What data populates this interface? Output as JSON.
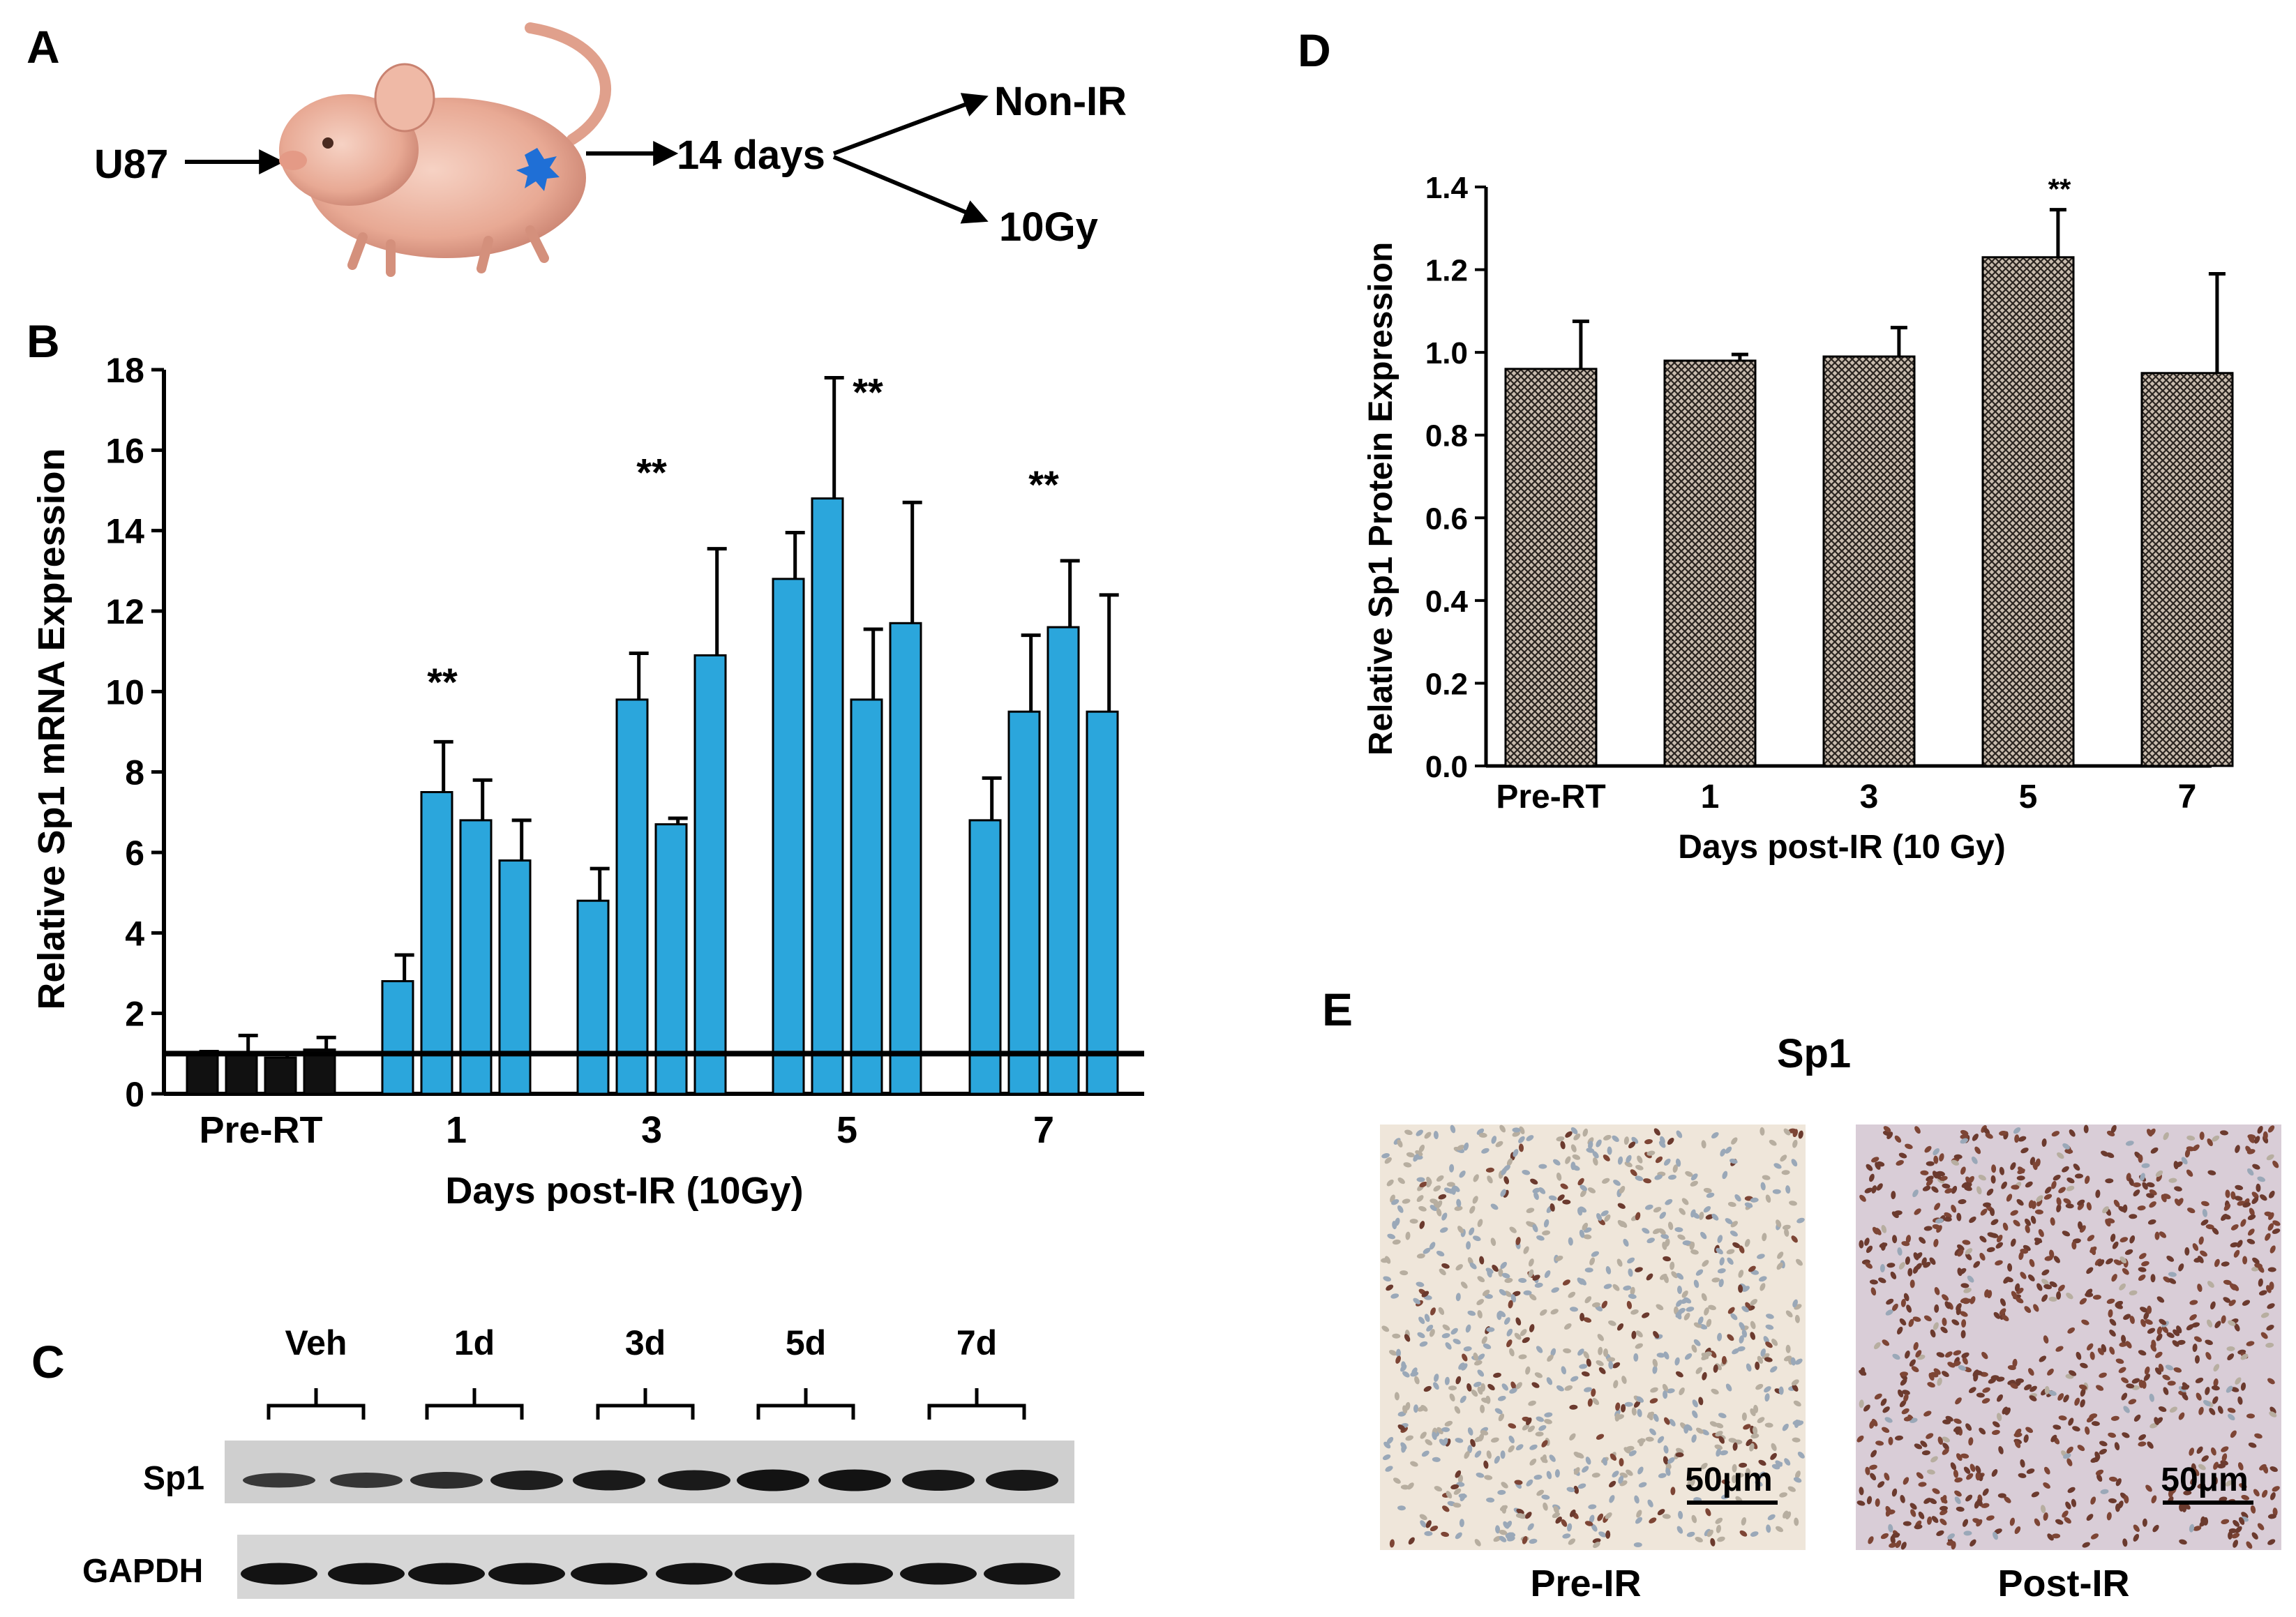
{
  "panels": {
    "A": {
      "label": "A",
      "cell_line": "U87",
      "wait": "14 days",
      "branch_top": "Non-IR",
      "branch_bottom": "10Gy"
    },
    "C": {
      "label": "C",
      "groups": [
        "Veh",
        "1d",
        "3d",
        "5d",
        "7d"
      ],
      "rows": [
        "Sp1",
        "GAPDH"
      ],
      "sp1_intensity": [
        0.45,
        0.5,
        0.6,
        0.8,
        0.85,
        0.85,
        0.95,
        0.95,
        0.9,
        0.9
      ],
      "gapdh_intensity": [
        0.95,
        0.95,
        0.95,
        0.95,
        0.95,
        0.95,
        0.95,
        0.95,
        0.95,
        0.95
      ]
    },
    "E": {
      "label": "E",
      "title": "Sp1",
      "images": [
        {
          "caption": "Pre-IR",
          "scale": "50μm",
          "stain_fraction": 0.15
        },
        {
          "caption": "Post-IR",
          "scale": "50μm",
          "stain_fraction": 0.9
        }
      ]
    }
  },
  "chart_data": [
    {
      "panel": "B",
      "type": "bar",
      "title": "",
      "xlabel": "Days post-IR (10Gy)",
      "ylabel": "Relative Sp1 mRNA Expression",
      "ylim": [
        0,
        18
      ],
      "yticks": [
        0,
        2,
        4,
        6,
        8,
        10,
        12,
        14,
        16,
        18
      ],
      "categories": [
        "Pre-RT",
        "1",
        "3",
        "5",
        "7"
      ],
      "baseline": 1.0,
      "groups": [
        {
          "label": "Pre-RT",
          "color": "#111111",
          "values": [
            1.0,
            1.0,
            0.9,
            1.1
          ],
          "errors": [
            0.05,
            0.45,
            0.1,
            0.3
          ],
          "sig": ""
        },
        {
          "label": "1",
          "color": "#2ba6dc",
          "values": [
            2.8,
            7.5,
            6.8,
            5.8
          ],
          "errors": [
            0.65,
            1.25,
            1.0,
            1.0
          ],
          "sig": "**"
        },
        {
          "label": "3",
          "color": "#2ba6dc",
          "values": [
            4.8,
            9.8,
            6.7,
            10.9
          ],
          "errors": [
            0.8,
            1.15,
            0.15,
            2.65
          ],
          "sig": "**"
        },
        {
          "label": "5",
          "color": "#2ba6dc",
          "values": [
            12.8,
            14.8,
            9.8,
            11.7
          ],
          "errors": [
            1.15,
            3.0,
            1.75,
            3.0
          ],
          "sig": "**"
        },
        {
          "label": "7",
          "color": "#2ba6dc",
          "values": [
            6.8,
            9.5,
            11.6,
            9.5
          ],
          "errors": [
            1.05,
            1.9,
            1.65,
            2.9
          ],
          "sig": "**"
        }
      ]
    },
    {
      "panel": "D",
      "type": "bar",
      "title": "",
      "xlabel": "Days post-IR (10 Gy)",
      "ylabel": "Relative Sp1 Protein Expression",
      "ylim": [
        0,
        1.4
      ],
      "yticks": [
        "0.0",
        "0.2",
        "0.4",
        "0.6",
        "0.8",
        "1.0",
        "1.2",
        "1.4"
      ],
      "categories": [
        "Pre-RT",
        "1",
        "3",
        "5",
        "7"
      ],
      "values": [
        0.96,
        0.98,
        0.99,
        1.23,
        0.95
      ],
      "errors": [
        0.115,
        0.015,
        0.07,
        0.115,
        0.24
      ],
      "sig": [
        "",
        "",
        "",
        "**",
        ""
      ]
    }
  ],
  "panel_labels": {
    "B": "B",
    "D": "D"
  }
}
